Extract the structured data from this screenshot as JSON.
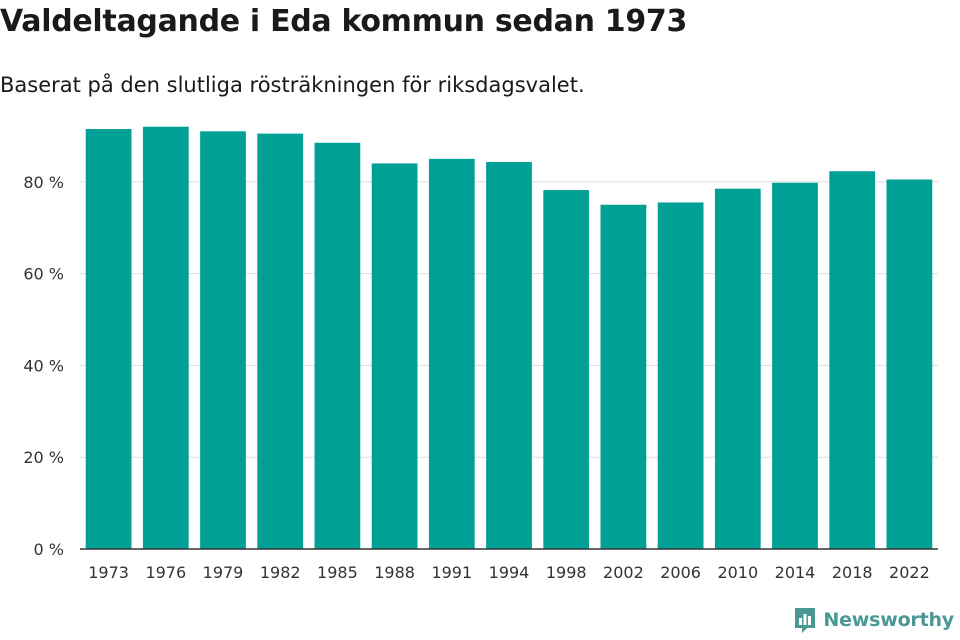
{
  "chart_data": {
    "type": "bar",
    "title": "Valdeltagande i Eda kommun sedan 1973",
    "subtitle": "Baserat på den slutliga rösträkningen för riksdagsvalet.",
    "categories": [
      "1973",
      "1976",
      "1979",
      "1982",
      "1985",
      "1988",
      "1991",
      "1994",
      "1998",
      "2002",
      "2006",
      "2010",
      "2014",
      "2018",
      "2022"
    ],
    "values": [
      91.5,
      92.0,
      91.0,
      90.5,
      88.5,
      84.0,
      85.0,
      84.3,
      78.2,
      75.0,
      75.5,
      78.5,
      79.8,
      82.3,
      80.5
    ],
    "ylim": [
      0,
      100
    ],
    "yticks": [
      0,
      20,
      40,
      60,
      80
    ],
    "ytick_labels": [
      "0 %",
      "20 %",
      "40 %",
      "60 %",
      "80 %"
    ],
    "grid": true,
    "bar_color": "#00a096"
  },
  "brand": {
    "name": "Newsworthy",
    "color": "#4a9894",
    "icon": "bar-chart-icon"
  }
}
